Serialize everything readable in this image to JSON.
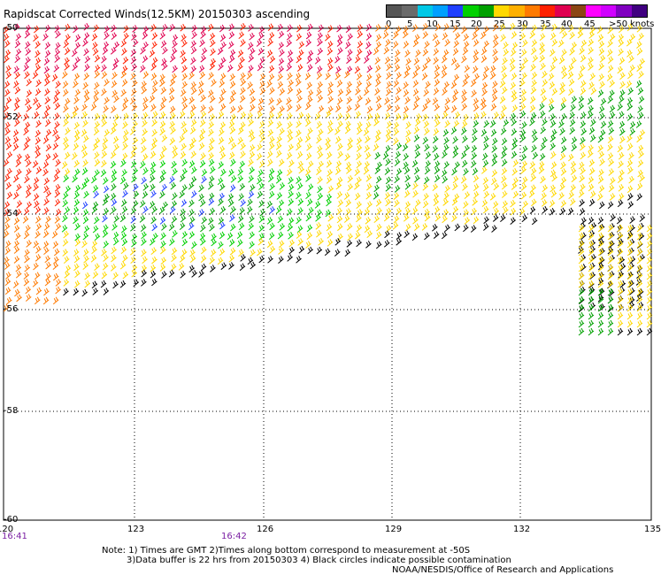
{
  "title": "Rapidscat Corrected Winds(12.5KM) 20150303 ascending",
  "legend": {
    "colors": [
      "#555555",
      "#6a6a6a",
      "#00c8e6",
      "#00a0ff",
      "#2040ff",
      "#00d000",
      "#00a000",
      "#ffd800",
      "#ffb000",
      "#ff7a00",
      "#ff2000",
      "#e00050",
      "#8b4513",
      "#ff00ff",
      "#d000ff",
      "#8000c0",
      "#400080"
    ],
    "ticks": [
      "0",
      "5",
      "10",
      "15",
      "20",
      "25",
      "30",
      "35",
      "40",
      "45",
      ">50"
    ],
    "units": "knots"
  },
  "lat_labels": [
    "-50",
    "-52",
    "-54",
    "-56",
    "-58",
    "-60"
  ],
  "lon_labels": [
    "120",
    "123",
    "126",
    "129",
    "132",
    "135"
  ],
  "times": [
    "16:41",
    "16:42"
  ],
  "notes": {
    "line1": "Note: 1) Times are GMT 2)Times along bottom correspond to measurement at -50S",
    "line2": "3)Data buffer is 22 hrs from 20150303 4) Black circles indicate possible contamination",
    "credit": "NOAA/NESDIS/Office of Research and Applications"
  }
}
